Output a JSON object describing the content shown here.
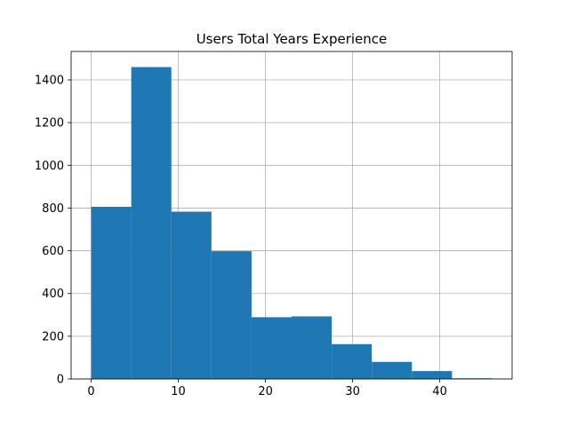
{
  "chart_data": {
    "type": "bar",
    "subtype": "histogram",
    "title": "Users Total Years Experience",
    "xlabel": "",
    "ylabel": "",
    "bins": [
      {
        "start": 0.0,
        "end": 4.6,
        "count": 806
      },
      {
        "start": 4.6,
        "end": 9.2,
        "count": 1460
      },
      {
        "start": 9.2,
        "end": 13.8,
        "count": 783
      },
      {
        "start": 13.8,
        "end": 18.4,
        "count": 598
      },
      {
        "start": 18.4,
        "end": 23.0,
        "count": 289
      },
      {
        "start": 23.0,
        "end": 27.6,
        "count": 293
      },
      {
        "start": 27.6,
        "end": 32.2,
        "count": 163
      },
      {
        "start": 32.2,
        "end": 36.8,
        "count": 80
      },
      {
        "start": 36.8,
        "end": 41.4,
        "count": 37
      },
      {
        "start": 41.4,
        "end": 46.0,
        "count": 3
      }
    ],
    "xlim": [
      -2.3,
      48.3
    ],
    "ylim": [
      0,
      1533
    ],
    "xticks": [
      0,
      10,
      20,
      30,
      40
    ],
    "yticks": [
      0,
      200,
      400,
      600,
      800,
      1000,
      1200,
      1400
    ],
    "grid": true,
    "bar_color": "#1f77b4",
    "grid_color": "#b0b0b0"
  }
}
